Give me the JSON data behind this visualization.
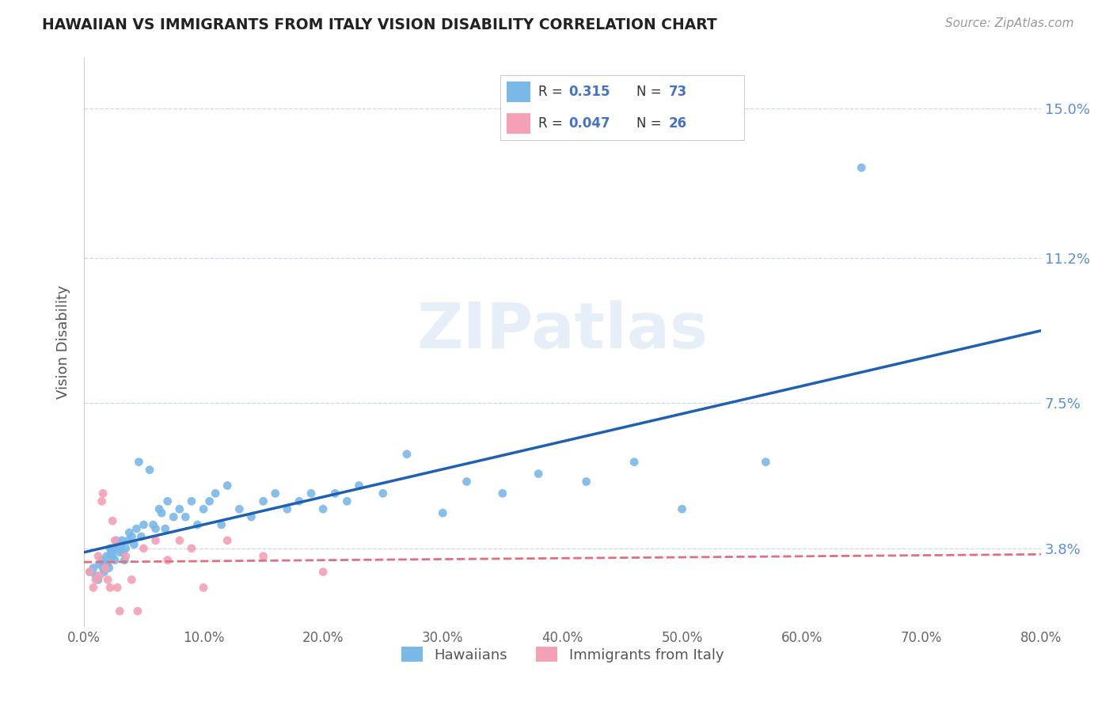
{
  "title": "HAWAIIAN VS IMMIGRANTS FROM ITALY VISION DISABILITY CORRELATION CHART",
  "source_text": "Source: ZipAtlas.com",
  "ylabel": "Vision Disability",
  "xmin": 0.0,
  "xmax": 0.8,
  "ymin": 0.018,
  "ymax": 0.163,
  "yticks": [
    0.038,
    0.075,
    0.112,
    0.15
  ],
  "ytick_labels": [
    "3.8%",
    "7.5%",
    "11.2%",
    "15.0%"
  ],
  "xticks": [
    0.0,
    0.1,
    0.2,
    0.3,
    0.4,
    0.5,
    0.6,
    0.7,
    0.8
  ],
  "xtick_labels": [
    "0.0%",
    "10.0%",
    "20.0%",
    "30.0%",
    "40.0%",
    "50.0%",
    "60.0%",
    "70.0%",
    "80.0%"
  ],
  "hawaiian_color": "#7ab8e8",
  "italy_color": "#f4a0b5",
  "regression_blue": "#2060b0",
  "regression_pink": "#e07080",
  "watermark": "ZIPatlas",
  "hawaiian_x": [
    0.005,
    0.008,
    0.01,
    0.012,
    0.013,
    0.015,
    0.016,
    0.017,
    0.018,
    0.019,
    0.02,
    0.021,
    0.022,
    0.022,
    0.023,
    0.024,
    0.025,
    0.026,
    0.027,
    0.028,
    0.03,
    0.031,
    0.032,
    0.033,
    0.034,
    0.035,
    0.037,
    0.038,
    0.04,
    0.042,
    0.044,
    0.046,
    0.048,
    0.05,
    0.055,
    0.058,
    0.06,
    0.063,
    0.065,
    0.068,
    0.07,
    0.075,
    0.08,
    0.085,
    0.09,
    0.095,
    0.1,
    0.105,
    0.11,
    0.115,
    0.12,
    0.13,
    0.14,
    0.15,
    0.16,
    0.17,
    0.18,
    0.19,
    0.2,
    0.21,
    0.22,
    0.23,
    0.25,
    0.27,
    0.3,
    0.32,
    0.35,
    0.38,
    0.42,
    0.46,
    0.5,
    0.57,
    0.65
  ],
  "hawaiian_y": [
    0.032,
    0.033,
    0.031,
    0.03,
    0.034,
    0.035,
    0.033,
    0.032,
    0.034,
    0.036,
    0.034,
    0.033,
    0.036,
    0.038,
    0.037,
    0.036,
    0.038,
    0.035,
    0.04,
    0.038,
    0.037,
    0.039,
    0.04,
    0.037,
    0.035,
    0.038,
    0.04,
    0.042,
    0.041,
    0.039,
    0.043,
    0.06,
    0.041,
    0.044,
    0.058,
    0.044,
    0.043,
    0.048,
    0.047,
    0.043,
    0.05,
    0.046,
    0.048,
    0.046,
    0.05,
    0.044,
    0.048,
    0.05,
    0.052,
    0.044,
    0.054,
    0.048,
    0.046,
    0.05,
    0.052,
    0.048,
    0.05,
    0.052,
    0.048,
    0.052,
    0.05,
    0.054,
    0.052,
    0.062,
    0.047,
    0.055,
    0.052,
    0.057,
    0.055,
    0.06,
    0.048,
    0.06,
    0.135
  ],
  "italy_x": [
    0.005,
    0.008,
    0.01,
    0.012,
    0.013,
    0.015,
    0.016,
    0.018,
    0.02,
    0.022,
    0.024,
    0.026,
    0.028,
    0.03,
    0.035,
    0.04,
    0.045,
    0.05,
    0.06,
    0.07,
    0.08,
    0.09,
    0.1,
    0.12,
    0.15,
    0.2
  ],
  "italy_y": [
    0.032,
    0.028,
    0.03,
    0.036,
    0.031,
    0.05,
    0.052,
    0.033,
    0.03,
    0.028,
    0.045,
    0.04,
    0.028,
    0.022,
    0.036,
    0.03,
    0.022,
    0.038,
    0.04,
    0.035,
    0.04,
    0.038,
    0.028,
    0.04,
    0.036,
    0.032
  ]
}
